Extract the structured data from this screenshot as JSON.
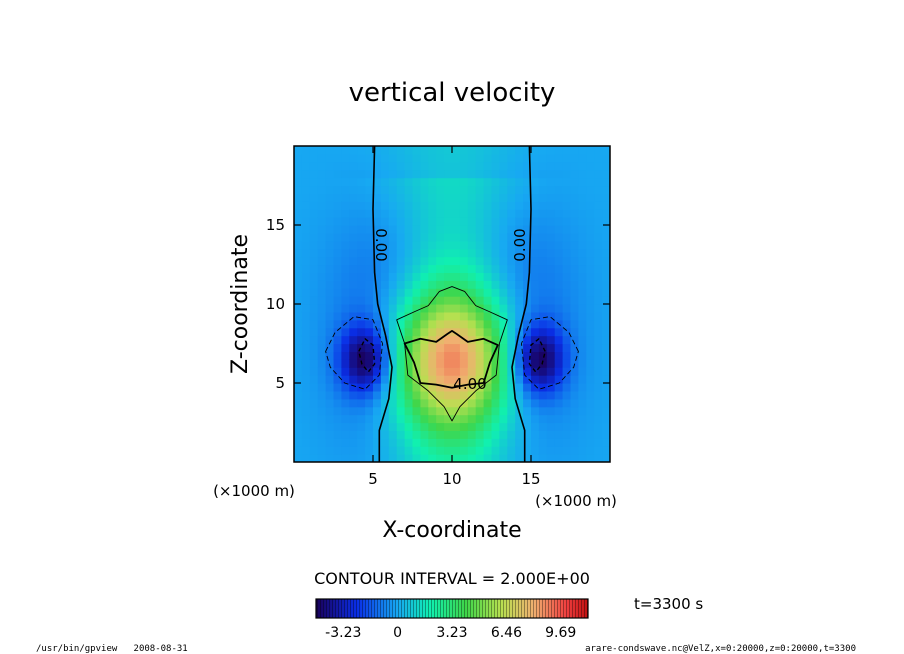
{
  "chart_data": {
    "type": "heatmap",
    "title": "vertical velocity",
    "xlabel": "X-coordinate",
    "ylabel": "Z-coordinate",
    "xunit": "(×1000 m)",
    "yunit": "(×1000 m)",
    "xlim": [
      0,
      20
    ],
    "ylim": [
      0,
      20
    ],
    "xticks": [
      5,
      10,
      15
    ],
    "yticks": [
      5,
      10,
      15
    ],
    "contour_interval_text": "CONTOUR INTERVAL = 2.000E+00",
    "contour_labels": [
      "0.00",
      "0.00",
      "4.00"
    ],
    "colorbar": {
      "ticks": [
        "-3.23",
        "0",
        "3.23",
        "6.46",
        "9.69"
      ],
      "range": [
        -4.85,
        11.31
      ]
    },
    "features": [
      {
        "kind": "updraft",
        "x": 10,
        "z": 6.5,
        "w": 8.5
      },
      {
        "kind": "downdraft",
        "x": 4.5,
        "z": 6.5,
        "w": -4.5
      },
      {
        "kind": "downdraft",
        "x": 15.5,
        "z": 6.5,
        "w": -4.5
      }
    ],
    "time_label": "t=3300 s",
    "grid": false,
    "legend": "none"
  },
  "footer": {
    "left": "/usr/bin/gpview   2008-08-31",
    "right": "arare-condswave.nc@VelZ,x=0:20000,z=0:20000,t=3300"
  }
}
